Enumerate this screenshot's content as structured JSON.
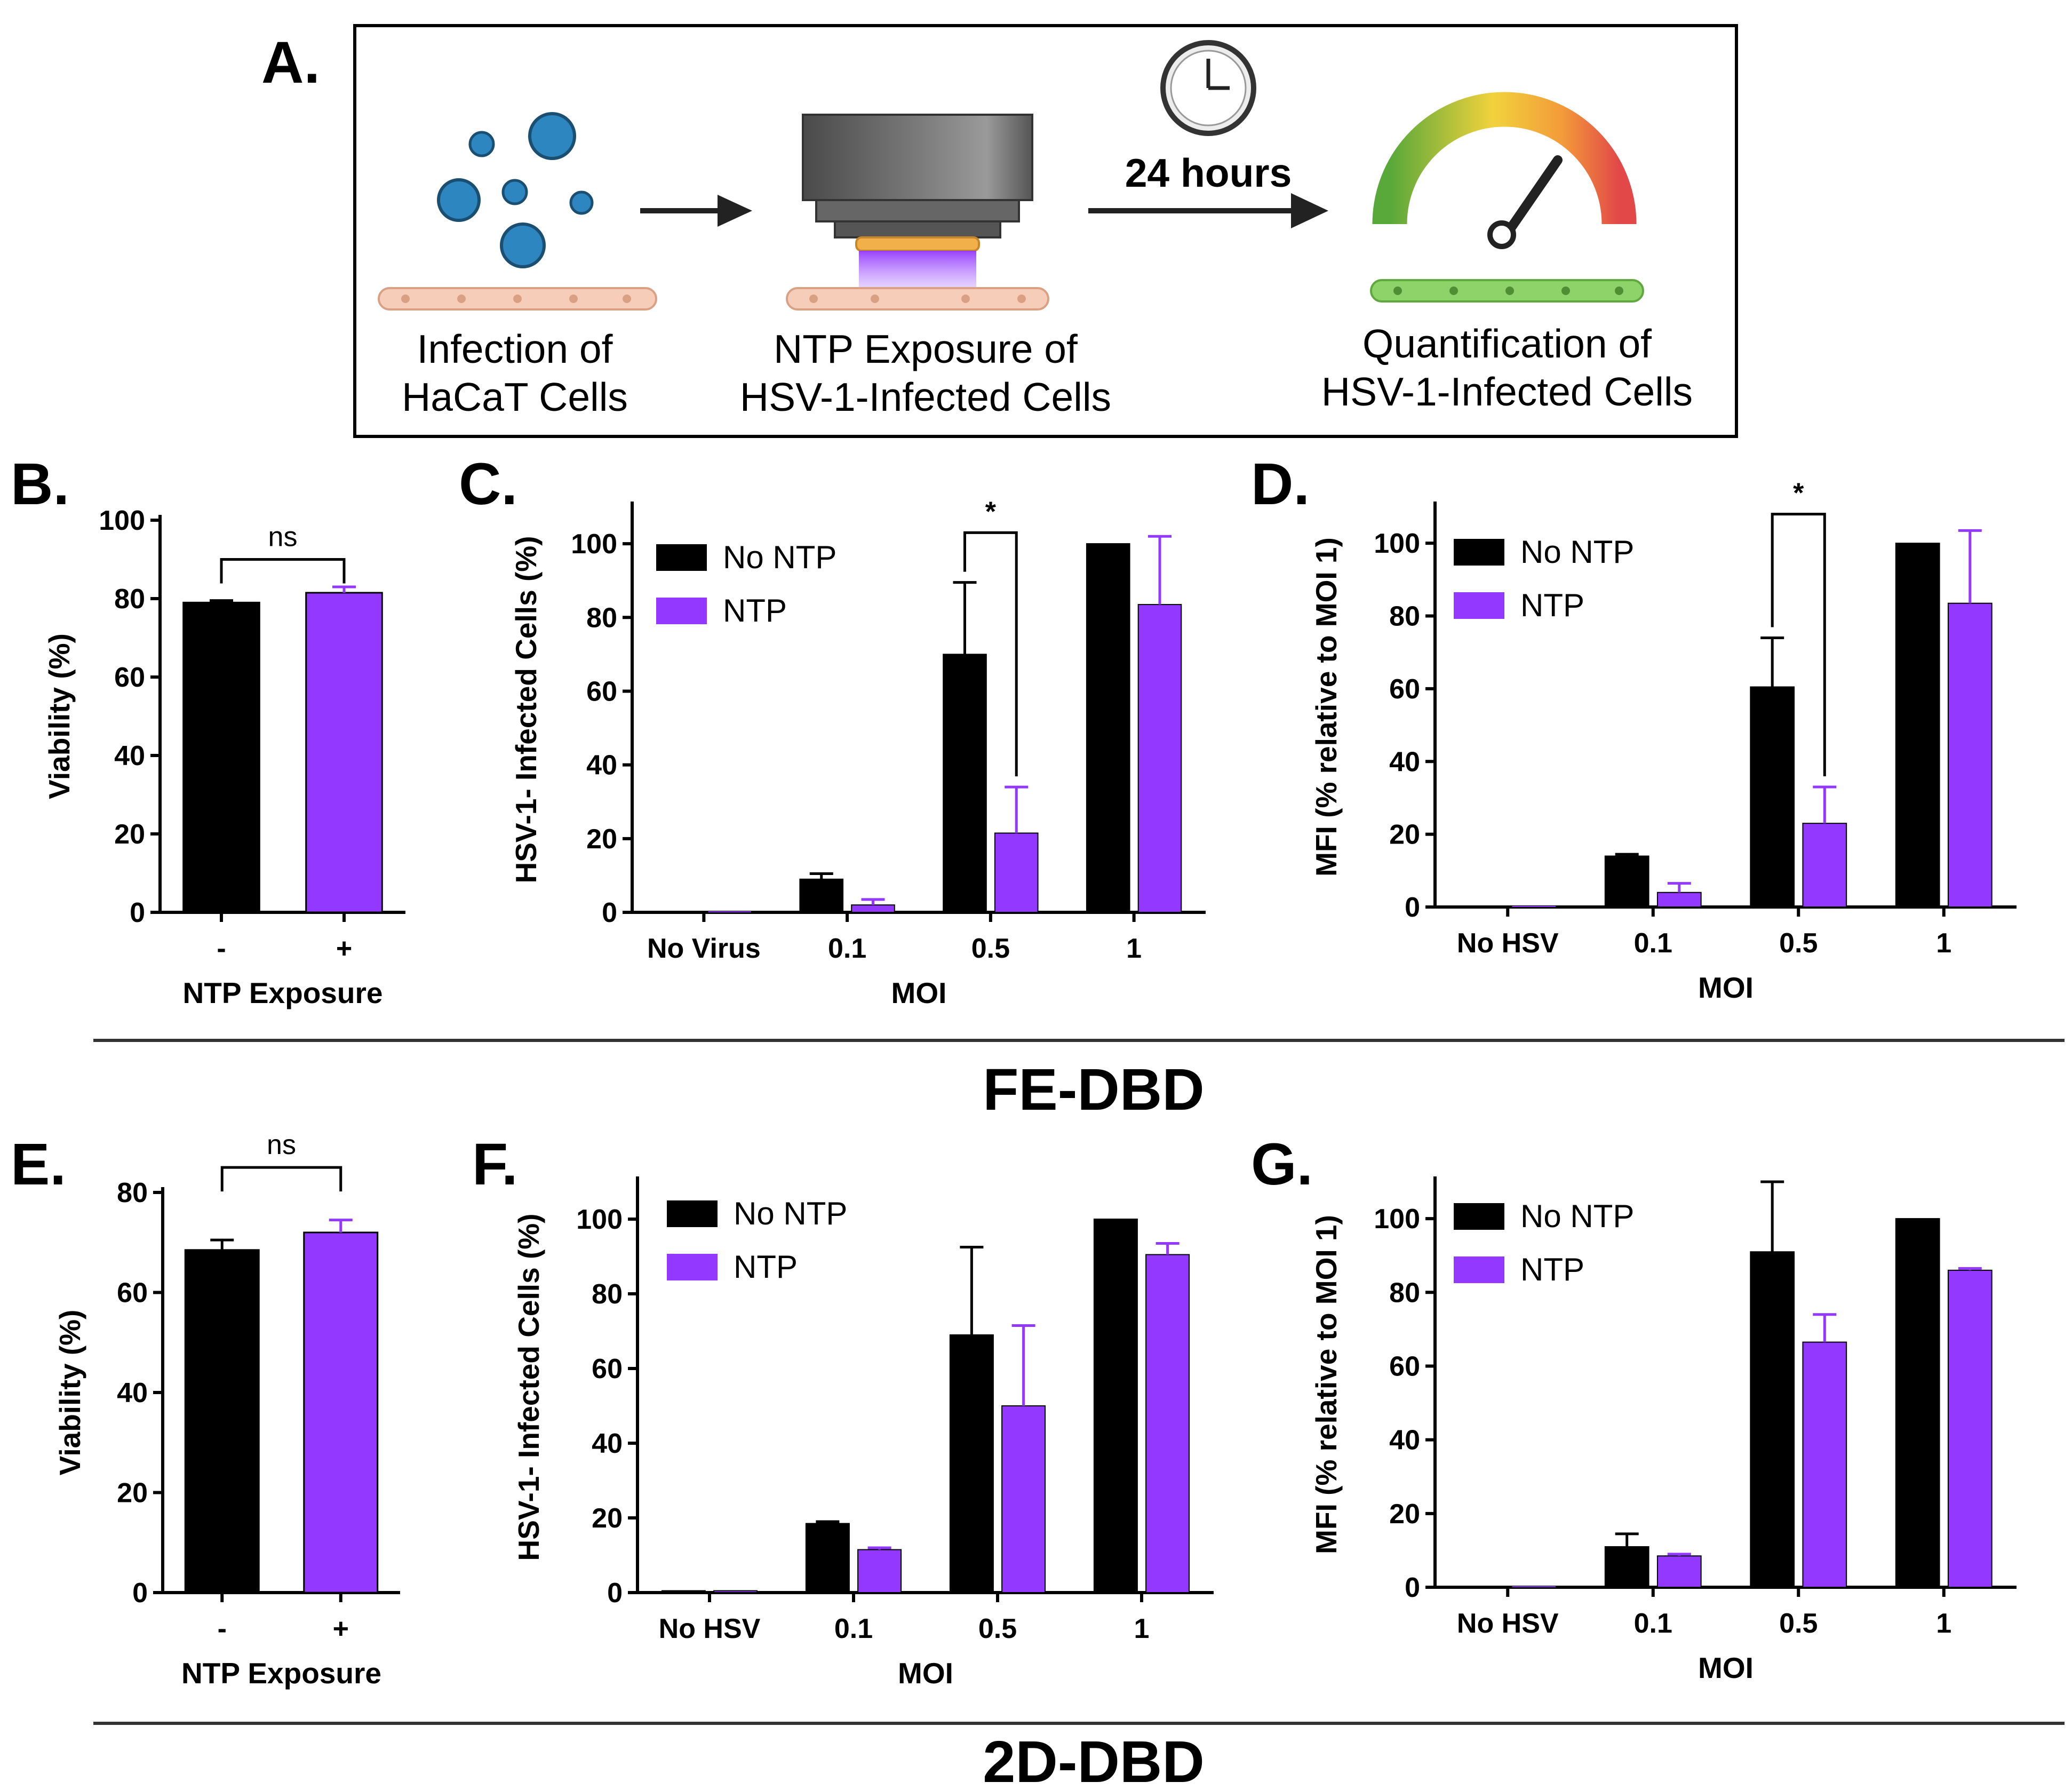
{
  "colors": {
    "no_ntp": "#000000",
    "ntp": "#9338FE"
  },
  "panel_a": {
    "label": "A.",
    "step1": [
      "Infection of",
      "HaCaT Cells"
    ],
    "step2": [
      "NTP Exposure of",
      "HSV-1-Infected Cells"
    ],
    "time_label": "24 hours",
    "step3": [
      "Quantification of",
      "HSV-1-Infected Cells"
    ]
  },
  "section_labels": {
    "fe": "FE-DBD",
    "twod": "2D-DBD"
  },
  "chart_data": [
    {
      "id": "B",
      "panel_label": "B.",
      "type": "bar",
      "ylabel": "Viability (%)",
      "xlabel": "NTP Exposure",
      "categories": [
        "-",
        "+"
      ],
      "ylim": [
        0,
        100
      ],
      "yticks": [
        "0",
        "20",
        "40",
        "60",
        "80",
        "100"
      ],
      "values": [
        79,
        81.5
      ],
      "errors": [
        0.5,
        1.5
      ],
      "bar_colors": [
        "#000000",
        "#9338FE"
      ],
      "significance": {
        "from": 0,
        "to": 1,
        "label": "ns",
        "level": 90
      }
    },
    {
      "id": "C",
      "panel_label": "C.",
      "type": "bar",
      "ylabel": "HSV-1- Infected Cells (%)",
      "xlabel": "MOI",
      "categories": [
        "No Virus",
        "0.1",
        "0.5",
        "1"
      ],
      "ylim": [
        0,
        110
      ],
      "yticks": [
        "0",
        "20",
        "40",
        "60",
        "80",
        "100"
      ],
      "series": [
        {
          "name": "No NTP",
          "color": "#000000",
          "values": [
            0,
            9,
            70,
            100
          ],
          "errors": [
            0,
            1.5,
            19.5,
            0
          ]
        },
        {
          "name": "NTP",
          "color": "#9338FE",
          "values": [
            0,
            2,
            21.5,
            83.5
          ],
          "errors": [
            0,
            1.5,
            12.5,
            18.5
          ]
        }
      ],
      "significance": {
        "cat": 2,
        "label": "*",
        "level": 103
      }
    },
    {
      "id": "D",
      "panel_label": "D.",
      "type": "bar",
      "ylabel": "MFI (% relative to MOI 1)",
      "xlabel": "MOI",
      "categories": [
        "No HSV",
        "0.1",
        "0.5",
        "1"
      ],
      "ylim": [
        0,
        110
      ],
      "yticks": [
        "0",
        "20",
        "40",
        "60",
        "80",
        "100"
      ],
      "series": [
        {
          "name": "No NTP",
          "color": "#000000",
          "values": [
            0,
            14,
            60.5,
            100
          ],
          "errors": [
            0,
            0.5,
            13.5,
            0
          ]
        },
        {
          "name": "NTP",
          "color": "#9338FE",
          "values": [
            0,
            4,
            23,
            83.5
          ],
          "errors": [
            0,
            2.5,
            10,
            20
          ]
        }
      ],
      "significance": {
        "cat": 2,
        "label": "*",
        "level": 108
      }
    },
    {
      "id": "E",
      "panel_label": "E.",
      "type": "bar",
      "ylabel": "Viability (%)",
      "xlabel": "NTP Exposure",
      "categories": [
        "-",
        "+"
      ],
      "ylim": [
        0,
        80
      ],
      "yticks": [
        "0",
        "20",
        "40",
        "60",
        "80"
      ],
      "values": [
        68.5,
        72
      ],
      "errors": [
        2,
        2.5
      ],
      "bar_colors": [
        "#000000",
        "#9338FE"
      ],
      "significance": {
        "from": 0,
        "to": 1,
        "label": "ns",
        "level": 85
      }
    },
    {
      "id": "F",
      "panel_label": "F.",
      "type": "bar",
      "ylabel": "HSV-1- Infected Cells (%)",
      "xlabel": "MOI",
      "categories": [
        "No HSV",
        "0.1",
        "0.5",
        "1"
      ],
      "ylim": [
        0,
        110
      ],
      "yticks": [
        "0",
        "20",
        "40",
        "60",
        "80",
        "100"
      ],
      "series": [
        {
          "name": "No NTP",
          "color": "#000000",
          "values": [
            0.5,
            18.5,
            69,
            100
          ],
          "errors": [
            0,
            0.5,
            23.5,
            0
          ]
        },
        {
          "name": "NTP",
          "color": "#9338FE",
          "values": [
            0.5,
            11.5,
            50,
            90.5
          ],
          "errors": [
            0,
            0.5,
            21.5,
            3
          ]
        }
      ]
    },
    {
      "id": "G",
      "panel_label": "G.",
      "type": "bar",
      "ylabel": "MFI (% relative to MOI 1)",
      "xlabel": "MOI",
      "categories": [
        "No HSV",
        "0.1",
        "0.5",
        "1"
      ],
      "ylim": [
        0,
        110
      ],
      "yticks": [
        "0",
        "20",
        "40",
        "60",
        "80",
        "100"
      ],
      "series": [
        {
          "name": "No NTP",
          "color": "#000000",
          "values": [
            0,
            11,
            91,
            100
          ],
          "errors": [
            0,
            3.5,
            19,
            0
          ]
        },
        {
          "name": "NTP",
          "color": "#9338FE",
          "values": [
            0,
            8.5,
            66.5,
            86
          ],
          "errors": [
            0,
            0.5,
            7.5,
            0.5
          ]
        }
      ]
    }
  ]
}
